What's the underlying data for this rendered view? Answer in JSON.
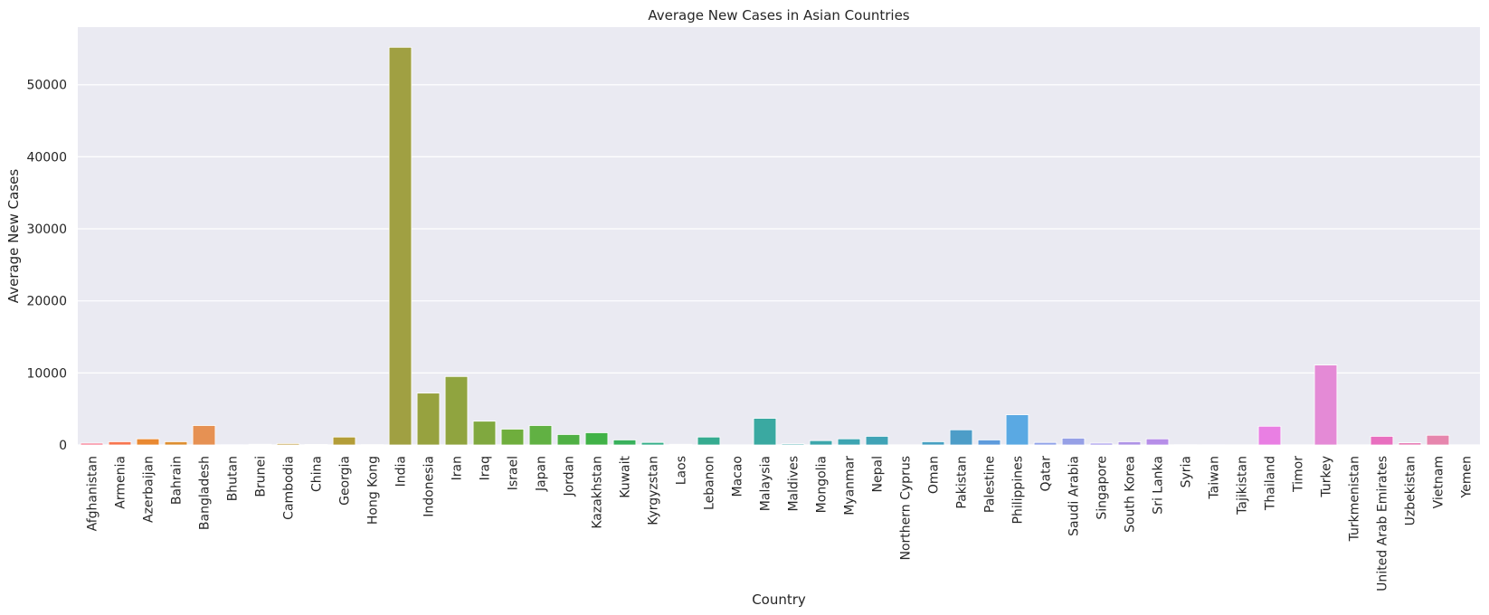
{
  "chart_data": {
    "type": "bar",
    "title": "Average New Cases in Asian Countries",
    "xlabel": "Country",
    "ylabel": "Average New Cases",
    "ylim": [
      0,
      58000
    ],
    "yticks": [
      0,
      10000,
      20000,
      30000,
      40000,
      50000
    ],
    "ytick_labels": [
      "0",
      "10000",
      "20000",
      "30000",
      "40000",
      "50000"
    ],
    "grid": true,
    "legend": "none",
    "categories": [
      "Afghanistan",
      "Armenia",
      "Azerbaijan",
      "Bahrain",
      "Bangladesh",
      "Bhutan",
      "Brunei",
      "Cambodia",
      "China",
      "Georgia",
      "Hong Kong",
      "India",
      "Indonesia",
      "Iran",
      "Iraq",
      "Israel",
      "Japan",
      "Jordan",
      "Kazakhstan",
      "Kuwait",
      "Kyrgyzstan",
      "Laos",
      "Lebanon",
      "Macao",
      "Malaysia",
      "Maldives",
      "Mongolia",
      "Myanmar",
      "Nepal",
      "Northern Cyprus",
      "Oman",
      "Pakistan",
      "Palestine",
      "Philippines",
      "Qatar",
      "Saudi Arabia",
      "Singapore",
      "South Korea",
      "Sri Lanka",
      "Syria",
      "Taiwan",
      "Tajikistan",
      "Thailand",
      "Timor",
      "Turkey",
      "Turkmenistan",
      "United Arab Emirates",
      "Uzbekistan",
      "Vietnam",
      "Yemen"
    ],
    "values": [
      250,
      450,
      850,
      450,
      2700,
      30,
      100,
      200,
      80,
      1100,
      50,
      55200,
      7200,
      9500,
      3300,
      2200,
      2700,
      1450,
      1700,
      700,
      350,
      100,
      1100,
      10,
      3700,
      150,
      600,
      850,
      1200,
      20,
      450,
      2100,
      700,
      4200,
      350,
      950,
      250,
      450,
      850,
      40,
      30,
      20,
      2600,
      10,
      11100,
      10,
      1200,
      300,
      1350,
      10
    ],
    "colors": [
      "#f77189",
      "#f7754f",
      "#e98932",
      "#dd8e32",
      "#e69153",
      "#bb9832",
      "#c9a048",
      "#c3a24a",
      "#b49d38",
      "#b39d38",
      "#a19e36",
      "#a0a042",
      "#97a23f",
      "#90a43f",
      "#80a83f",
      "#6fae3d",
      "#61b143",
      "#4fb044",
      "#41b247",
      "#39b15c",
      "#34ae88",
      "#35ac8a",
      "#36ab90",
      "#37aa97",
      "#3aa9a1",
      "#3ba7a8",
      "#3ca6ab",
      "#3da5b2",
      "#40a3b6",
      "#43a1bd",
      "#47a0c2",
      "#4d9dc8",
      "#5d9bdc",
      "#5aa9e3",
      "#8fa2e8",
      "#96a0e6",
      "#a498eb",
      "#ae93e6",
      "#b68ee8",
      "#c78be8",
      "#cf7cec",
      "#dc79e2",
      "#e97fe3",
      "#ea7cdb",
      "#e48ad6",
      "#ea7ed0",
      "#e86fbf",
      "#e77cb6",
      "#e686ad",
      "#f1719b"
    ]
  }
}
